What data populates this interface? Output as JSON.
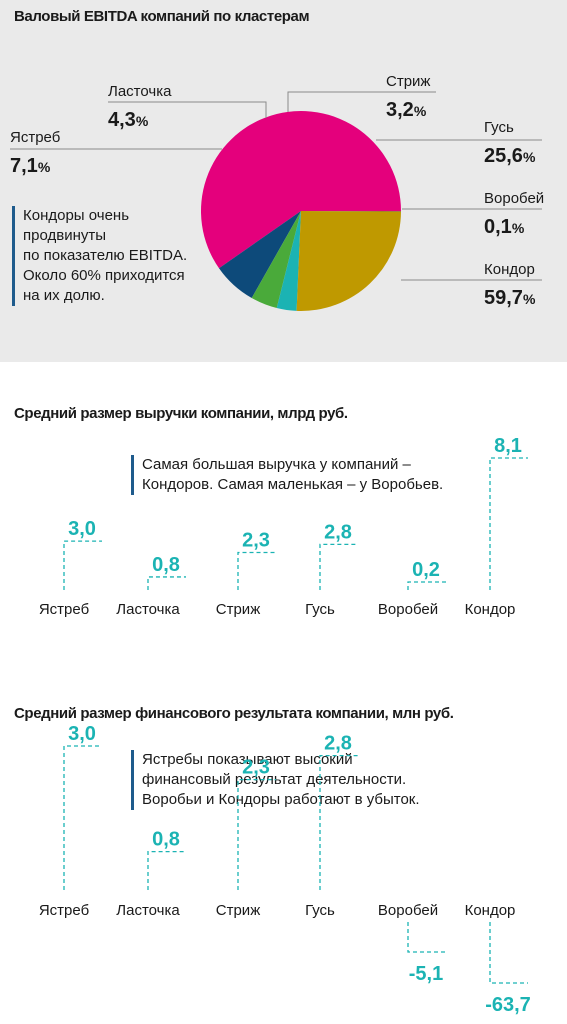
{
  "chart_data": [
    {
      "type": "pie",
      "title": "Валовый EBITDA компаний по кластерам",
      "unit": "%",
      "categories": [
        "Кондор",
        "Ястреб",
        "Ласточка",
        "Стриж",
        "Гусь",
        "Воробей"
      ],
      "values": [
        59.7,
        7.1,
        4.3,
        3.2,
        25.6,
        0.1
      ],
      "value_labels": [
        "59,7",
        "7,1",
        "4,3",
        "3,2",
        "25,6",
        "0,1"
      ],
      "colors": [
        "#e4007c",
        "#0d4a7a",
        "#4aaa3a",
        "#1bb3b3",
        "#bf9900",
        "#8a6a4a"
      ],
      "annotation": [
        "Кондоры очень",
        "продвинуты",
        "по показателю EBITDA.",
        "Около 60% приходится",
        "на их долю."
      ]
    },
    {
      "type": "bar",
      "title": "Средний размер выручки компании, млрд руб.",
      "categories": [
        "Ястреб",
        "Ласточка",
        "Стриж",
        "Гусь",
        "Воробей",
        "Кондор"
      ],
      "values": [
        3.0,
        0.8,
        2.3,
        2.8,
        0.2,
        8.1
      ],
      "value_labels": [
        "3,0",
        "0,8",
        "2,3",
        "2,8",
        "0,2",
        "8,1"
      ],
      "color": "#1bb3b3",
      "annotation": [
        "Самая большая выручка у компаний –",
        "Кондоров. Самая маленькая – у Воробьев."
      ]
    },
    {
      "type": "bar",
      "title": "Средний размер финансового результата компании, млн руб.",
      "categories": [
        "Ястреб",
        "Ласточка",
        "Стриж",
        "Гусь",
        "Воробей",
        "Кондор"
      ],
      "values": [
        3.0,
        0.8,
        2.3,
        2.8,
        -5.1,
        -63.7
      ],
      "value_labels": [
        "3,0",
        "0,8",
        "2,3",
        "2,8",
        "-5,1",
        "-63,7"
      ],
      "color": "#1bb3b3",
      "annotation": [
        "Ястребы показывают высокий",
        "финансовый результат деятельности.",
        "Воробьи и Кондоры работают в убыток."
      ]
    }
  ]
}
